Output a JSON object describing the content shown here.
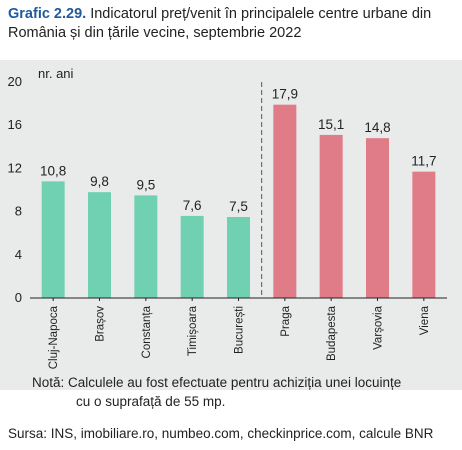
{
  "title_lead": "Grafic 2.29.",
  "title_text": "Indicatorul preț/venit în principalele centre urbane din România și din țările vecine, septembrie 2022",
  "note_line1": "Notă: Calculele au fost efectuate pentru achiziția unei locuințe",
  "note_line2": "cu o suprafață de 55 mp.",
  "source": "Sursa: INS, imobiliare.ro, numbeo.com, checkinprice.com, calcule BNR",
  "colors": {
    "romania": "#6fd1b2",
    "neighbors": "#e07b88",
    "background": "#e9eaea",
    "title_lead": "#1f5aa0"
  },
  "chart_data": {
    "type": "bar",
    "ylabel": "nr. ani",
    "ylim": [
      0,
      20
    ],
    "yticks": [
      0,
      4,
      8,
      12,
      16,
      20
    ],
    "grid": false,
    "categories": [
      "Cluj-Napoca",
      "Brașov",
      "Constanța",
      "Timișoara",
      "București",
      "Praga",
      "Budapesta",
      "Varșovia",
      "Viena"
    ],
    "values": [
      10.8,
      9.8,
      9.5,
      7.6,
      7.5,
      17.9,
      15.1,
      14.8,
      11.7
    ],
    "labels": [
      "10,8",
      "9,8",
      "9,5",
      "7,6",
      "7,5",
      "17,9",
      "15,1",
      "14,8",
      "11,7"
    ],
    "groups": [
      "romania",
      "romania",
      "romania",
      "romania",
      "romania",
      "neighbors",
      "neighbors",
      "neighbors",
      "neighbors"
    ],
    "separator_after_index": 4
  }
}
